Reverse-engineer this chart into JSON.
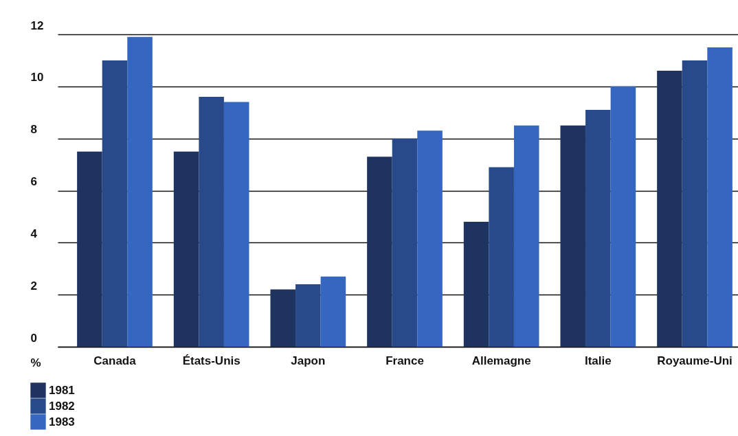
{
  "chart_data": {
    "type": "bar",
    "ylabel": "%",
    "categories": [
      "Canada",
      "États-Unis",
      "Japon",
      "France",
      "Allemagne",
      "Italie",
      "Royaume-Uni"
    ],
    "series": [
      {
        "name": "1981",
        "color": "#1f3360",
        "values": [
          7.5,
          7.5,
          2.2,
          7.3,
          4.8,
          8.5,
          10.6
        ]
      },
      {
        "name": "1982",
        "color": "#284a8a",
        "values": [
          11.0,
          9.6,
          2.4,
          8.0,
          6.9,
          9.1,
          11.0
        ]
      },
      {
        "name": "1983",
        "color": "#3566c0",
        "values": [
          11.9,
          9.4,
          2.7,
          8.3,
          8.5,
          10.0,
          11.5
        ]
      }
    ],
    "ylim": [
      0,
      12
    ],
    "yticks": [
      0,
      2,
      4,
      6,
      8,
      10,
      12
    ],
    "grid": "y",
    "legend": "bottom left"
  }
}
